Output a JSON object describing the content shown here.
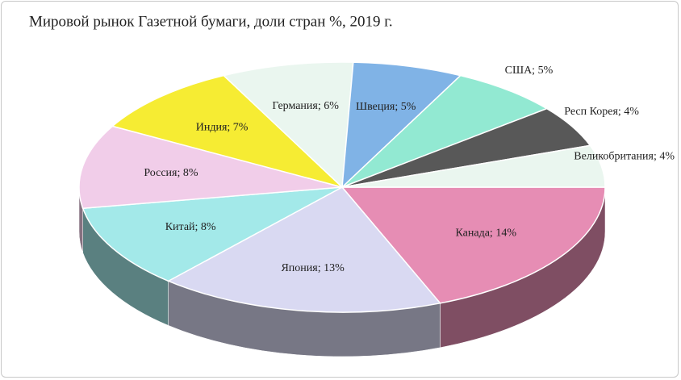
{
  "chart_data": {
    "type": "pie",
    "title": "Мировой рынок Газетной бумаги, доли стран %, 2019 г.",
    "values": [
      14,
      13,
      8,
      8,
      7,
      6,
      5,
      5,
      4,
      4
    ],
    "value_labels": [
      "Канада; 14%",
      "Япония; 13%",
      "Китай; 8%",
      "Россия; 8%",
      "Индия; 7%",
      "Германия; 6%",
      "Швеция; 5%",
      "США; 5%",
      "Респ Корея; 4%",
      "Великобритания; 4%"
    ],
    "colors": [
      "#e68db4",
      "#d9d9f2",
      "#a3e9e9",
      "#f1cde9",
      "#f6ec33",
      "#eaf6ef",
      "#80b3e6",
      "#92e9d2",
      "#585858",
      "#eaf6ef"
    ]
  }
}
